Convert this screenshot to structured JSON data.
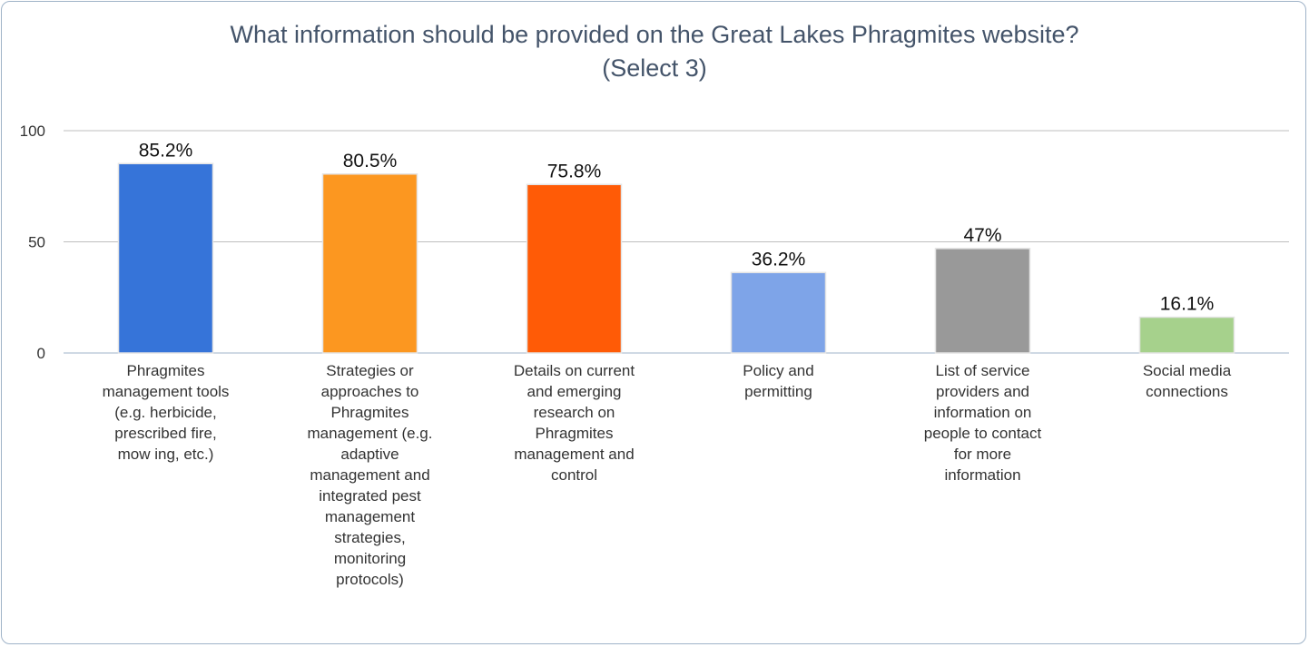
{
  "chart_data": {
    "type": "bar",
    "title": "What information should be provided on the Great Lakes Phragmites website?",
    "subtitle": "(Select 3)",
    "xlabel": "",
    "ylabel": "",
    "ylim": [
      0,
      100
    ],
    "yticks": [
      "0",
      "50",
      "100"
    ],
    "ytick_values": [
      0,
      50,
      100
    ],
    "grid": true,
    "legend": "none",
    "categories": [
      "Phragmites\nmanagement tools\n(e.g. herbicide,\nprescribed fire,\nmow ing, etc.)",
      "Strategies or\napproaches to\nPhragmites\nmanagement (e.g.\nadaptive\nmanagement and\nintegrated pest\nmanagement\nstrategies,\nmonitoring\nprotocols)",
      "Details on current\nand emerging\nresearch on\nPhragmites\nmanagement and\ncontrol",
      "Policy and\npermitting",
      "List of service\nproviders and\ninformation on\npeople to contact\nfor more\ninformation",
      "Social media\nconnections"
    ],
    "values": [
      85.2,
      80.5,
      75.8,
      36.2,
      47,
      16.1
    ],
    "data_labels": [
      "85.2%",
      "80.5%",
      "75.8%",
      "36.2%",
      "47%",
      "16.1%"
    ],
    "colors": [
      "#3674d9",
      "#fc9720",
      "#ff5b06",
      "#7ea4e8",
      "#999999",
      "#a6d18c"
    ]
  }
}
